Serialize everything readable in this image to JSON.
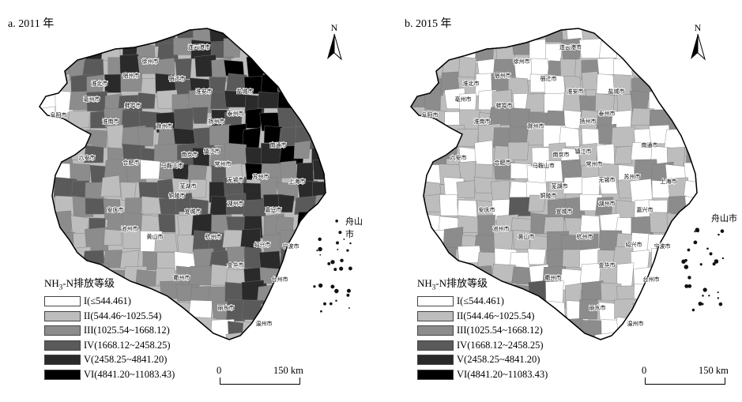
{
  "panels": [
    {
      "title": "a. 2011 年",
      "legend_title_main": "NH",
      "legend_title_sub": "3",
      "legend_title_rest": "-N排放等级",
      "island_label": "舟山市",
      "north": "N",
      "scale": {
        "zero": "0",
        "max": "150 km"
      }
    },
    {
      "title": "b. 2015 年",
      "legend_title_main": "NH",
      "legend_title_sub": "3",
      "legend_title_rest": "-N排放等级",
      "island_label": "舟山市",
      "north": "N",
      "scale": {
        "zero": "0",
        "max": "150 km"
      }
    }
  ],
  "legend": [
    {
      "label": "I(≤544.461)",
      "color": "#ffffff"
    },
    {
      "label": "II(544.46~1025.54)",
      "color": "#bdbdbd"
    },
    {
      "label": "III(1025.54~1668.12)",
      "color": "#8c8c8c"
    },
    {
      "label": "IV(1668.12~2458.25)",
      "color": "#5a5a5a"
    },
    {
      "label": "V(2458.25~4841.20)",
      "color": "#2a2a2a"
    },
    {
      "label": "VI(4841.20~11083.43)",
      "color": "#000000"
    }
  ],
  "cities": [
    "连云港市",
    "徐州市",
    "宿州市",
    "淮北市",
    "亳州市",
    "宿迁市",
    "淮安市",
    "盐城市",
    "蚌埠市",
    "阜阳市",
    "淮南市",
    "泰州市",
    "扬州市",
    "滁州市",
    "南通市",
    "六安市",
    "合肥市",
    "南京市",
    "镇江市",
    "常州市",
    "马鞍山市",
    "无锡市",
    "苏州市",
    "上海市",
    "芜湖市",
    "铜陵市",
    "宣城市",
    "湖州市",
    "嘉兴市",
    "安庆市",
    "池州市",
    "黄山市",
    "杭州市",
    "绍兴市",
    "宁波市",
    "金华市",
    "衢州市",
    "台州市",
    "丽水市",
    "温州市"
  ]
}
